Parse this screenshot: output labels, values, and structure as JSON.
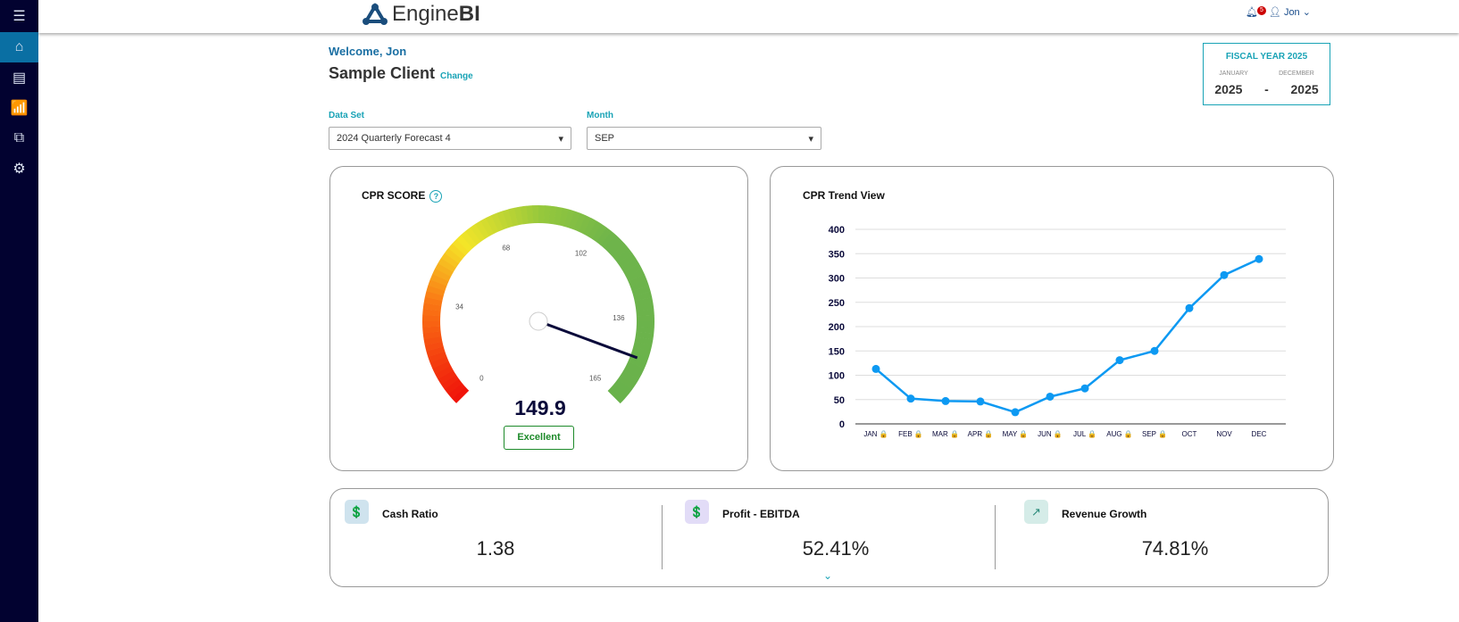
{
  "app": {
    "logo_light": "Engine",
    "logo_bold": "BI"
  },
  "sidebar": {
    "items": [
      {
        "icon": "menu-icon"
      },
      {
        "icon": "home-icon"
      },
      {
        "icon": "report-icon"
      },
      {
        "icon": "chart-icon"
      },
      {
        "icon": "hierarchy-icon"
      },
      {
        "icon": "gear-icon"
      }
    ]
  },
  "header": {
    "notifications": "5",
    "user": "Jon"
  },
  "welcome": "Welcome, Jon",
  "client": {
    "name": "Sample Client",
    "change": "Change"
  },
  "fiscal": {
    "title": "FISCAL YEAR 2025",
    "start_label": "JANUARY",
    "end_label": "DECEMBER",
    "start_year": "2025",
    "sep": "-",
    "end_year": "2025"
  },
  "filters": {
    "dataset_label": "Data Set",
    "dataset_value": "2024 Quarterly Forecast 4",
    "month_label": "Month",
    "month_value": "SEP"
  },
  "gauge": {
    "title": "CPR SCORE",
    "help": "?",
    "min": 0,
    "max": 165,
    "ticks": [
      "0",
      "34",
      "68",
      "102",
      "136",
      "165"
    ],
    "value": 149.9,
    "value_text": "149.9",
    "rating": "Excellent"
  },
  "chart_data": {
    "type": "line",
    "title": "CPR Trend View",
    "categories": [
      "JAN",
      "FEB",
      "MAR",
      "APR",
      "MAY",
      "JUN",
      "JUL",
      "AUG",
      "SEP",
      "OCT",
      "NOV",
      "DEC"
    ],
    "locked": [
      true,
      true,
      true,
      true,
      true,
      true,
      true,
      true,
      true,
      false,
      false,
      false
    ],
    "values": [
      113,
      52,
      47,
      46,
      24,
      56,
      73,
      131,
      150,
      238,
      306,
      339
    ],
    "ylim": [
      0,
      400
    ],
    "yticks": [
      "0",
      "50",
      "100",
      "150",
      "200",
      "250",
      "300",
      "350",
      "400"
    ],
    "color": "#0d99f2"
  },
  "metrics": [
    {
      "name": "Cash Ratio",
      "value": "1.38",
      "bg": "#cfe3ee"
    },
    {
      "name": "Profit - EBITDA",
      "value": "52.41%",
      "bg": "#e2dcf7"
    },
    {
      "name": "Revenue Growth",
      "value": "74.81%",
      "bg": "#d5ece8"
    }
  ]
}
